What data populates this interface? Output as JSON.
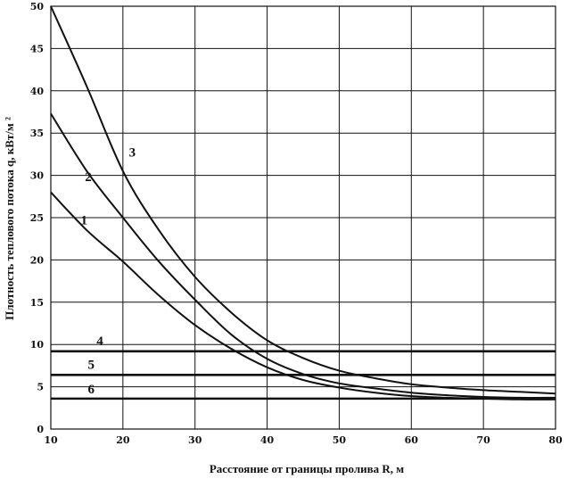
{
  "chart_data": {
    "type": "line",
    "xlabel": "Расстояние от границы пролива   R, м",
    "ylabel": "Плотность теплового потока   q, кВт/м ²",
    "xlim": [
      10,
      80
    ],
    "ylim": [
      0,
      50
    ],
    "x_ticks": [
      "10",
      "20",
      "30",
      "40",
      "50",
      "60",
      "70",
      "80"
    ],
    "y_ticks": [
      "0",
      "5",
      "10",
      "15",
      "20",
      "25",
      "30",
      "35",
      "40",
      "45",
      "50"
    ],
    "grid": true,
    "series": [
      {
        "name": "1",
        "kind": "curve",
        "x": [
          10,
          15,
          20,
          25,
          30,
          35,
          40,
          45,
          50,
          55,
          60,
          65,
          70,
          75,
          80
        ],
        "y": [
          28,
          23.5,
          19.8,
          15.8,
          12.3,
          9.5,
          7.3,
          5.8,
          4.9,
          4.3,
          3.9,
          3.7,
          3.6,
          3.5,
          3.5
        ]
      },
      {
        "name": "2",
        "kind": "curve",
        "x": [
          10,
          15,
          20,
          25,
          30,
          35,
          40,
          45,
          50,
          55,
          60,
          65,
          70,
          75,
          80
        ],
        "y": [
          37.3,
          30.5,
          25,
          19.8,
          15.3,
          11.2,
          8.3,
          6.5,
          5.4,
          4.8,
          4.3,
          4,
          3.8,
          3.7,
          3.7
        ]
      },
      {
        "name": "3",
        "kind": "curve",
        "x": [
          10,
          15,
          20,
          25,
          30,
          35,
          40,
          45,
          50,
          55,
          60,
          65,
          70,
          75,
          80
        ],
        "y": [
          50,
          40.5,
          30.5,
          23.5,
          18,
          13.8,
          10.5,
          8.4,
          6.9,
          6,
          5.3,
          4.9,
          4.6,
          4.4,
          4.2
        ]
      },
      {
        "name": "4",
        "kind": "constant",
        "x": [
          10,
          80
        ],
        "y": [
          9.2,
          9.2
        ]
      },
      {
        "name": "5",
        "kind": "constant",
        "x": [
          10,
          80
        ],
        "y": [
          6.4,
          6.4
        ]
      },
      {
        "name": "6",
        "kind": "constant",
        "x": [
          10,
          80
        ],
        "y": [
          3.6,
          3.6
        ]
      }
    ],
    "annotations": [
      {
        "text": "1",
        "x": 14.6,
        "y": 24.2
      },
      {
        "text": "2",
        "x": 15.2,
        "y": 29.3
      },
      {
        "text": "3",
        "x": 21.3,
        "y": 32.2
      },
      {
        "text": "4",
        "x": 16.8,
        "y": 9.9
      },
      {
        "text": "5",
        "x": 15.6,
        "y": 7.1
      },
      {
        "text": "6",
        "x": 15.6,
        "y": 4.2
      }
    ]
  }
}
